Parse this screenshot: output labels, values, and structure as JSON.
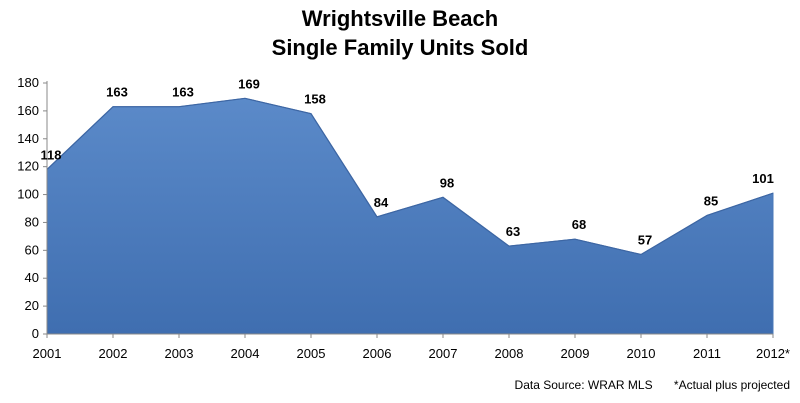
{
  "chart_data": {
    "type": "area",
    "title": "Wrightsville Beach",
    "subtitle": "Single Family Units Sold",
    "categories": [
      "2001",
      "2002",
      "2003",
      "2004",
      "2005",
      "2006",
      "2007",
      "2008",
      "2009",
      "2010",
      "2011",
      "2012*"
    ],
    "series": [
      {
        "values": [
          118,
          163,
          163,
          169,
          158,
          84,
          98,
          63,
          68,
          57,
          85,
          101
        ]
      }
    ],
    "ylim": [
      0,
      180
    ],
    "yticks": [
      0,
      20,
      40,
      60,
      80,
      100,
      120,
      140,
      160,
      180
    ],
    "grid": false,
    "legend": "none",
    "fill_color": "#5b8ac9",
    "fill_color_dark": "#3f6eb0"
  },
  "footer": {
    "source": "Data Source: WRAR MLS",
    "note": "*Actual plus projected"
  }
}
